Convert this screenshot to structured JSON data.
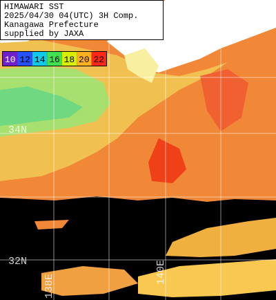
{
  "header": {
    "lines": [
      "HIMAWARI SST",
      "2025/04/30 04(UTC) 3H Comp.",
      "Kanagawa Prefecture",
      "supplied by JAXA"
    ]
  },
  "scale": {
    "labels": [
      10,
      12,
      14,
      16,
      18,
      20,
      22
    ]
  },
  "grid": {
    "lat_labels": [
      "34N",
      "32N"
    ],
    "lon_labels": [
      "138E",
      "140E"
    ]
  }
}
